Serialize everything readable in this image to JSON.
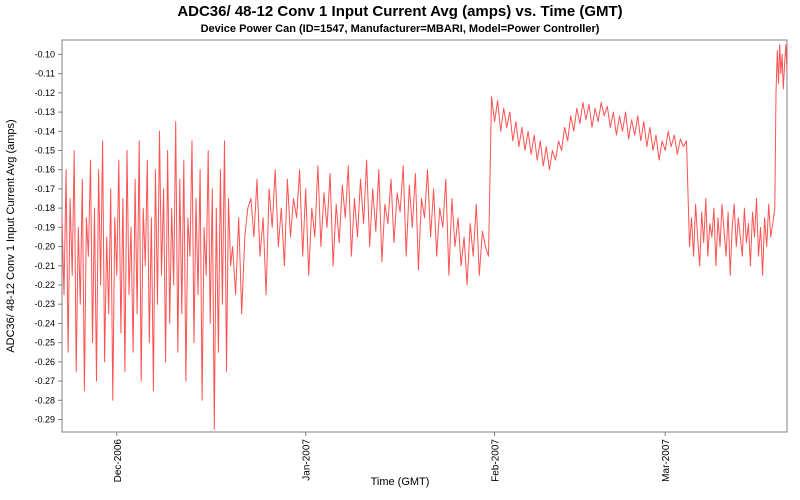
{
  "chart_data": {
    "type": "line",
    "title": "ADC36/ 48-12 Conv 1 Input Current Avg (amps) vs. Time (GMT)",
    "subtitle": "Device Power Can (ID=1547, Manufacturer=MBARI, Model=Power Controller)",
    "xlabel": "Time (GMT)",
    "ylabel": "ADC36/ 48-12 Conv 1 Input Current Avg (amps)",
    "grid": false,
    "legend": "none",
    "series_color": "#ff5252",
    "axis_color": "#808080",
    "x_unit": "days since 2006-11-22",
    "xlim": [
      0,
      119
    ],
    "ylim": [
      -0.2965,
      -0.0925
    ],
    "y_ticks": [
      -0.29,
      -0.28,
      -0.27,
      -0.26,
      -0.25,
      -0.24,
      -0.23,
      -0.22,
      -0.21,
      -0.2,
      -0.19,
      -0.18,
      -0.17,
      -0.16,
      -0.15,
      -0.14,
      -0.13,
      -0.12,
      -0.11,
      -0.1
    ],
    "x_ticks": [
      {
        "pos": 9,
        "label": "Dec-2006"
      },
      {
        "pos": 40,
        "label": "Jan-2007"
      },
      {
        "pos": 71,
        "label": "Feb-2007"
      },
      {
        "pos": 99,
        "label": "Mar-2007"
      }
    ],
    "series": [
      {
        "name": "ADC36/ 48-12 Conv 1 Input Current Avg",
        "points": [
          [
            0,
            -0.185
          ],
          [
            0.33,
            -0.225
          ],
          [
            0.67,
            -0.16
          ],
          [
            1,
            -0.255
          ],
          [
            1.33,
            -0.175
          ],
          [
            1.67,
            -0.215
          ],
          [
            2,
            -0.15
          ],
          [
            2.33,
            -0.265
          ],
          [
            2.67,
            -0.19
          ],
          [
            3,
            -0.23
          ],
          [
            3.33,
            -0.165
          ],
          [
            3.67,
            -0.275
          ],
          [
            4,
            -0.185
          ],
          [
            4.33,
            -0.205
          ],
          [
            4.67,
            -0.155
          ],
          [
            5,
            -0.25
          ],
          [
            5.33,
            -0.18
          ],
          [
            5.67,
            -0.27
          ],
          [
            6,
            -0.16
          ],
          [
            6.33,
            -0.22
          ],
          [
            6.67,
            -0.145
          ],
          [
            7,
            -0.26
          ],
          [
            7.33,
            -0.195
          ],
          [
            7.67,
            -0.235
          ],
          [
            8,
            -0.17
          ],
          [
            8.33,
            -0.28
          ],
          [
            8.67,
            -0.185
          ],
          [
            9,
            -0.215
          ],
          [
            9.33,
            -0.155
          ],
          [
            9.67,
            -0.245
          ],
          [
            10,
            -0.175
          ],
          [
            10.33,
            -0.265
          ],
          [
            10.67,
            -0.15
          ],
          [
            11,
            -0.225
          ],
          [
            11.33,
            -0.19
          ],
          [
            11.67,
            -0.255
          ],
          [
            12,
            -0.165
          ],
          [
            12.33,
            -0.235
          ],
          [
            12.67,
            -0.145
          ],
          [
            13,
            -0.27
          ],
          [
            13.33,
            -0.18
          ],
          [
            13.67,
            -0.21
          ],
          [
            14,
            -0.155
          ],
          [
            14.33,
            -0.25
          ],
          [
            14.67,
            -0.185
          ],
          [
            15,
            -0.275
          ],
          [
            15.33,
            -0.16
          ],
          [
            15.67,
            -0.23
          ],
          [
            16,
            -0.14
          ],
          [
            16.33,
            -0.215
          ],
          [
            16.67,
            -0.17
          ],
          [
            17,
            -0.26
          ],
          [
            17.33,
            -0.15
          ],
          [
            17.67,
            -0.24
          ],
          [
            18,
            -0.18
          ],
          [
            18.33,
            -0.22
          ],
          [
            18.67,
            -0.135
          ],
          [
            19,
            -0.255
          ],
          [
            19.33,
            -0.165
          ],
          [
            19.67,
            -0.235
          ],
          [
            20,
            -0.155
          ],
          [
            20.33,
            -0.27
          ],
          [
            20.67,
            -0.185
          ],
          [
            21,
            -0.205
          ],
          [
            21.33,
            -0.145
          ],
          [
            21.67,
            -0.25
          ],
          [
            22,
            -0.175
          ],
          [
            22.33,
            -0.225
          ],
          [
            22.67,
            -0.16
          ],
          [
            23,
            -0.28
          ],
          [
            23.33,
            -0.19
          ],
          [
            23.67,
            -0.215
          ],
          [
            24,
            -0.15
          ],
          [
            24.33,
            -0.24
          ],
          [
            24.67,
            -0.17
          ],
          [
            25,
            -0.295
          ],
          [
            25.33,
            -0.18
          ],
          [
            25.67,
            -0.255
          ],
          [
            26,
            -0.16
          ],
          [
            26.33,
            -0.23
          ],
          [
            26.67,
            -0.145
          ],
          [
            27,
            -0.265
          ],
          [
            27.33,
            -0.175
          ],
          [
            27.67,
            -0.21
          ],
          [
            28,
            -0.2
          ],
          [
            28.5,
            -0.225
          ],
          [
            29,
            -0.185
          ],
          [
            29.5,
            -0.235
          ],
          [
            30,
            -0.195
          ],
          [
            30.5,
            -0.18
          ],
          [
            31,
            -0.175
          ],
          [
            31.5,
            -0.195
          ],
          [
            32,
            -0.165
          ],
          [
            32.5,
            -0.205
          ],
          [
            33,
            -0.185
          ],
          [
            33.5,
            -0.225
          ],
          [
            34,
            -0.17
          ],
          [
            34.5,
            -0.19
          ],
          [
            35,
            -0.16
          ],
          [
            35.5,
            -0.2
          ],
          [
            36,
            -0.18
          ],
          [
            36.5,
            -0.21
          ],
          [
            37,
            -0.165
          ],
          [
            37.5,
            -0.195
          ],
          [
            38,
            -0.175
          ],
          [
            38.5,
            -0.185
          ],
          [
            39,
            -0.16
          ],
          [
            39.5,
            -0.205
          ],
          [
            40,
            -0.17
          ],
          [
            40.5,
            -0.215
          ],
          [
            41,
            -0.18
          ],
          [
            41.5,
            -0.195
          ],
          [
            42,
            -0.158
          ],
          [
            42.5,
            -0.2
          ],
          [
            43,
            -0.172
          ],
          [
            43.5,
            -0.19
          ],
          [
            44,
            -0.162
          ],
          [
            44.5,
            -0.21
          ],
          [
            45,
            -0.178
          ],
          [
            45.5,
            -0.198
          ],
          [
            46,
            -0.168
          ],
          [
            46.5,
            -0.185
          ],
          [
            47,
            -0.158
          ],
          [
            47.5,
            -0.205
          ],
          [
            48,
            -0.175
          ],
          [
            48.5,
            -0.195
          ],
          [
            49,
            -0.165
          ],
          [
            49.5,
            -0.188
          ],
          [
            50,
            -0.155
          ],
          [
            50.5,
            -0.2
          ],
          [
            51,
            -0.17
          ],
          [
            51.5,
            -0.192
          ],
          [
            52,
            -0.16
          ],
          [
            52.5,
            -0.208
          ],
          [
            53,
            -0.178
          ],
          [
            53.5,
            -0.188
          ],
          [
            54,
            -0.165
          ],
          [
            54.5,
            -0.198
          ],
          [
            55,
            -0.172
          ],
          [
            55.5,
            -0.182
          ],
          [
            56,
            -0.158
          ],
          [
            56.5,
            -0.205
          ],
          [
            57,
            -0.168
          ],
          [
            57.5,
            -0.19
          ],
          [
            58,
            -0.162
          ],
          [
            58.5,
            -0.212
          ],
          [
            59,
            -0.175
          ],
          [
            59.5,
            -0.185
          ],
          [
            60,
            -0.16
          ],
          [
            60.5,
            -0.195
          ],
          [
            61,
            -0.17
          ],
          [
            61.5,
            -0.205
          ],
          [
            62,
            -0.18
          ],
          [
            62.5,
            -0.19
          ],
          [
            63,
            -0.165
          ],
          [
            63.5,
            -0.215
          ],
          [
            64,
            -0.175
          ],
          [
            64.5,
            -0.2
          ],
          [
            65,
            -0.185
          ],
          [
            65.5,
            -0.21
          ],
          [
            66,
            -0.195
          ],
          [
            66.5,
            -0.22
          ],
          [
            67,
            -0.188
          ],
          [
            67.5,
            -0.205
          ],
          [
            68,
            -0.178
          ],
          [
            68.5,
            -0.215
          ],
          [
            69,
            -0.192
          ],
          [
            69.5,
            -0.2
          ],
          [
            70,
            -0.205
          ],
          [
            70.5,
            -0.122
          ],
          [
            71,
            -0.135
          ],
          [
            71.5,
            -0.124
          ],
          [
            72,
            -0.14
          ],
          [
            72.5,
            -0.128
          ],
          [
            73,
            -0.138
          ],
          [
            73.5,
            -0.13
          ],
          [
            74,
            -0.145
          ],
          [
            74.5,
            -0.135
          ],
          [
            75,
            -0.148
          ],
          [
            75.5,
            -0.138
          ],
          [
            76,
            -0.15
          ],
          [
            76.5,
            -0.14
          ],
          [
            77,
            -0.152
          ],
          [
            77.5,
            -0.142
          ],
          [
            78,
            -0.155
          ],
          [
            78.5,
            -0.145
          ],
          [
            79,
            -0.158
          ],
          [
            79.5,
            -0.148
          ],
          [
            80,
            -0.16
          ],
          [
            80.5,
            -0.15
          ],
          [
            81,
            -0.155
          ],
          [
            81.5,
            -0.145
          ],
          [
            82,
            -0.15
          ],
          [
            82.5,
            -0.138
          ],
          [
            83,
            -0.145
          ],
          [
            83.5,
            -0.132
          ],
          [
            84,
            -0.14
          ],
          [
            84.5,
            -0.128
          ],
          [
            85,
            -0.136
          ],
          [
            85.5,
            -0.125
          ],
          [
            86,
            -0.134
          ],
          [
            86.5,
            -0.126
          ],
          [
            87,
            -0.138
          ],
          [
            87.5,
            -0.128
          ],
          [
            88,
            -0.135
          ],
          [
            88.5,
            -0.125
          ],
          [
            89,
            -0.132
          ],
          [
            89.5,
            -0.127
          ],
          [
            90,
            -0.138
          ],
          [
            90.5,
            -0.13
          ],
          [
            91,
            -0.142
          ],
          [
            91.5,
            -0.132
          ],
          [
            92,
            -0.14
          ],
          [
            92.5,
            -0.13
          ],
          [
            93,
            -0.144
          ],
          [
            93.5,
            -0.134
          ],
          [
            94,
            -0.142
          ],
          [
            94.5,
            -0.132
          ],
          [
            95,
            -0.145
          ],
          [
            95.5,
            -0.135
          ],
          [
            96,
            -0.148
          ],
          [
            96.5,
            -0.138
          ],
          [
            97,
            -0.15
          ],
          [
            97.5,
            -0.142
          ],
          [
            98,
            -0.155
          ],
          [
            98.5,
            -0.145
          ],
          [
            99,
            -0.15
          ],
          [
            99.5,
            -0.14
          ],
          [
            100,
            -0.148
          ],
          [
            100.5,
            -0.142
          ],
          [
            101,
            -0.152
          ],
          [
            101.5,
            -0.144
          ],
          [
            102,
            -0.148
          ],
          [
            102.5,
            -0.145
          ],
          [
            103,
            -0.2
          ],
          [
            103.33,
            -0.185
          ],
          [
            103.67,
            -0.205
          ],
          [
            104,
            -0.178
          ],
          [
            104.33,
            -0.195
          ],
          [
            104.67,
            -0.21
          ],
          [
            105,
            -0.182
          ],
          [
            105.33,
            -0.198
          ],
          [
            105.67,
            -0.175
          ],
          [
            106,
            -0.205
          ],
          [
            106.33,
            -0.188
          ],
          [
            106.67,
            -0.195
          ],
          [
            107,
            -0.18
          ],
          [
            107.33,
            -0.21
          ],
          [
            107.67,
            -0.185
          ],
          [
            108,
            -0.2
          ],
          [
            108.33,
            -0.178
          ],
          [
            108.67,
            -0.192
          ],
          [
            109,
            -0.205
          ],
          [
            109.33,
            -0.182
          ],
          [
            109.67,
            -0.215
          ],
          [
            110,
            -0.19
          ],
          [
            110.33,
            -0.178
          ],
          [
            110.67,
            -0.2
          ],
          [
            111,
            -0.185
          ],
          [
            111.33,
            -0.195
          ],
          [
            111.67,
            -0.205
          ],
          [
            112,
            -0.18
          ],
          [
            112.33,
            -0.198
          ],
          [
            112.67,
            -0.188
          ],
          [
            113,
            -0.21
          ],
          [
            113.33,
            -0.182
          ],
          [
            113.67,
            -0.195
          ],
          [
            114,
            -0.175
          ],
          [
            114.33,
            -0.205
          ],
          [
            114.67,
            -0.19
          ],
          [
            115,
            -0.215
          ],
          [
            115.33,
            -0.185
          ],
          [
            115.67,
            -0.2
          ],
          [
            116,
            -0.178
          ],
          [
            116.33,
            -0.195
          ],
          [
            116.67,
            -0.188
          ],
          [
            117,
            -0.18
          ],
          [
            117.2,
            -0.12
          ],
          [
            117.4,
            -0.098
          ],
          [
            117.6,
            -0.115
          ],
          [
            117.8,
            -0.095
          ],
          [
            118,
            -0.11
          ],
          [
            118.2,
            -0.1
          ],
          [
            118.4,
            -0.118
          ],
          [
            118.6,
            -0.105
          ],
          [
            118.8,
            -0.095
          ],
          [
            119,
            -0.108
          ]
        ]
      }
    ]
  }
}
